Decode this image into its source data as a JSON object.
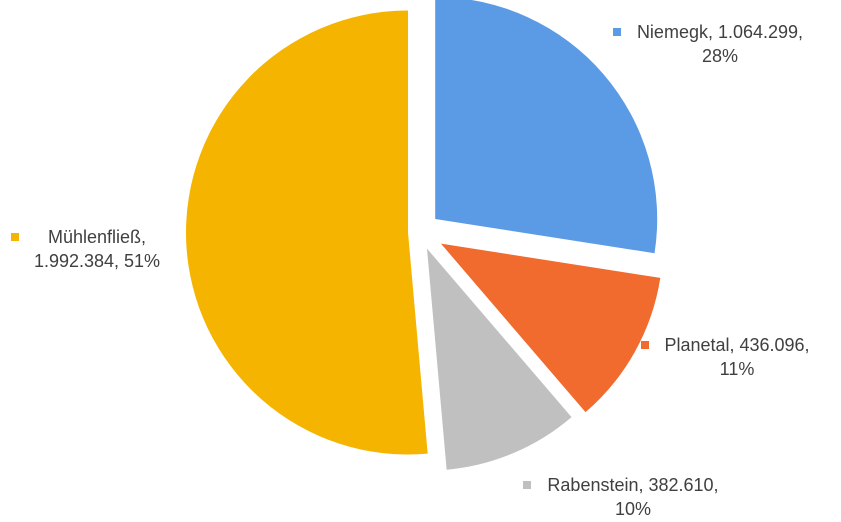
{
  "chart_data": {
    "type": "pie",
    "slices": [
      {
        "name": "Niemegk",
        "value": 1064299,
        "value_label": "1.064.299",
        "percent_label": "28%",
        "color": "#5B9BE6"
      },
      {
        "name": "Planetal",
        "value": 436096,
        "value_label": "436.096",
        "percent_label": "11%",
        "color": "#F26B2E"
      },
      {
        "name": "Rabenstein",
        "value": 382610,
        "value_label": "382.610",
        "percent_label": "10%",
        "color": "#C0C0C0"
      },
      {
        "name": "Mühlenfließ",
        "value": 1992384,
        "value_label": "1.992.384",
        "percent_label": "51%",
        "color": "#F5B400"
      }
    ],
    "labels": [
      {
        "lines": [
          "Niemegk, 1.064.299,",
          "28%"
        ]
      },
      {
        "lines": [
          "Planetal, 436.096,",
          "11%"
        ]
      },
      {
        "lines": [
          "Rabenstein, 382.610,",
          "10%"
        ]
      },
      {
        "lines": [
          "Mühlenfließ,",
          "1.992.384, 51%"
        ]
      }
    ],
    "start_angle": "12 o'clock",
    "direction": "clockwise",
    "exploded": true
  }
}
